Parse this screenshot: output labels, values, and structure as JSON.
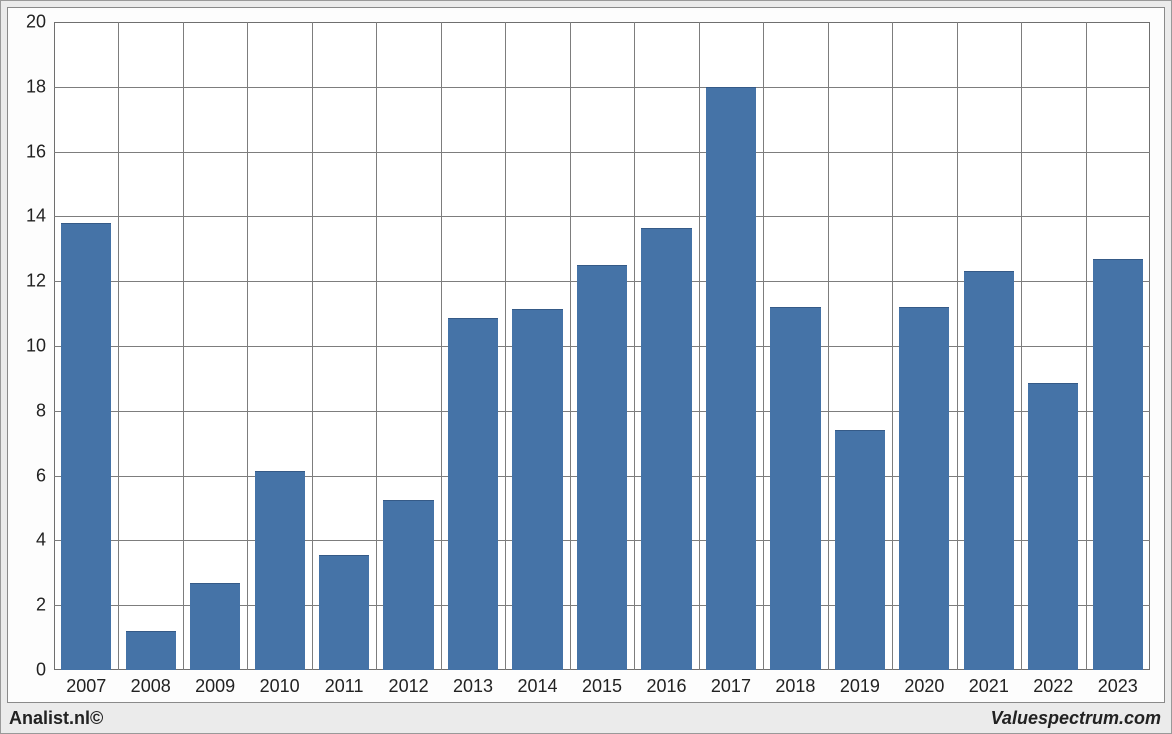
{
  "chart": {
    "type": "bar",
    "background_color": "#ffffff",
    "frame_background": "#ebebeb",
    "plot_border_color": "#6f6f6f",
    "grid_color": "#7d7d7d",
    "bar_color": "#4573a7",
    "bar_width_ratio": 0.78,
    "label_fontsize": 18,
    "label_color": "#222222",
    "ylim": [
      0,
      20
    ],
    "ytick_step": 2,
    "categories": [
      "2007",
      "2008",
      "2009",
      "2010",
      "2011",
      "2012",
      "2013",
      "2014",
      "2015",
      "2016",
      "2017",
      "2018",
      "2019",
      "2020",
      "2021",
      "2022",
      "2023"
    ],
    "values": [
      13.8,
      1.2,
      2.7,
      6.15,
      3.55,
      5.25,
      10.85,
      11.15,
      12.5,
      13.65,
      18.0,
      11.2,
      7.4,
      11.2,
      12.3,
      8.85,
      12.7
    ]
  },
  "footer": {
    "left": "Analist.nl©",
    "right": "Valuespectrum.com"
  }
}
